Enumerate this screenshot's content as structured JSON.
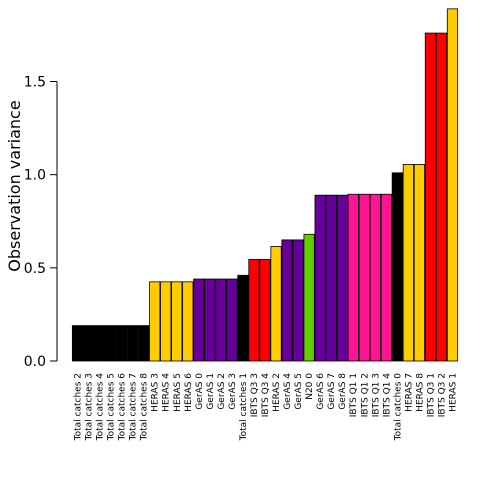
{
  "chart_data": {
    "type": "bar",
    "title": "",
    "xlabel": "",
    "ylabel": "Observation variance",
    "ylim": [
      0,
      1.9
    ],
    "yticks": [
      "0.0",
      "0.5",
      "1.0",
      "1.5"
    ],
    "grid": false,
    "legend": "none",
    "colors": {
      "black": "#000000",
      "yellow": "#FFCC00",
      "purple": "#660099",
      "red": "#FF0000",
      "green": "#66CC00",
      "pink": "#FF1493"
    },
    "categories": [
      "Total catches 2",
      "Total catches 3",
      "Total catches 4",
      "Total catches 5",
      "Total catches 6",
      "Total catches 7",
      "Total catches 8",
      "HERAS 3",
      "HERAS 4",
      "HERAS 5",
      "HERAS 6",
      "GerAS 0",
      "GerAS 1",
      "GerAS 2",
      "GerAS 3",
      "Total catches 1",
      "IBTS Q3 3",
      "IBTS Q3 4",
      "HERAS 2",
      "GerAS 4",
      "GerAS 5",
      "N20 0",
      "GerAS 6",
      "GerAS 7",
      "GerAS 8",
      "IBTS Q1 1",
      "IBTS Q1 2",
      "IBTS Q1 3",
      "IBTS Q1 4",
      "Total catches 0",
      "HERAS 7",
      "HERAS 8",
      "IBTS Q3 1",
      "IBTS Q3 2",
      "HERAS 1"
    ],
    "values": [
      0.19,
      0.19,
      0.19,
      0.19,
      0.19,
      0.19,
      0.19,
      0.425,
      0.425,
      0.425,
      0.425,
      0.44,
      0.44,
      0.44,
      0.44,
      0.46,
      0.545,
      0.545,
      0.615,
      0.65,
      0.65,
      0.68,
      0.89,
      0.89,
      0.89,
      0.895,
      0.895,
      0.895,
      0.895,
      1.01,
      1.055,
      1.055,
      1.76,
      1.76,
      1.89
    ],
    "bar_colors": [
      "#000000",
      "#000000",
      "#000000",
      "#000000",
      "#000000",
      "#000000",
      "#000000",
      "#FFCC00",
      "#FFCC00",
      "#FFCC00",
      "#FFCC00",
      "#660099",
      "#660099",
      "#660099",
      "#660099",
      "#000000",
      "#FF0000",
      "#FF0000",
      "#FFCC00",
      "#660099",
      "#660099",
      "#66CC00",
      "#660099",
      "#660099",
      "#660099",
      "#FF1493",
      "#FF1493",
      "#FF1493",
      "#FF1493",
      "#000000",
      "#FFCC00",
      "#FFCC00",
      "#FF0000",
      "#FF0000",
      "#FFCC00"
    ]
  }
}
